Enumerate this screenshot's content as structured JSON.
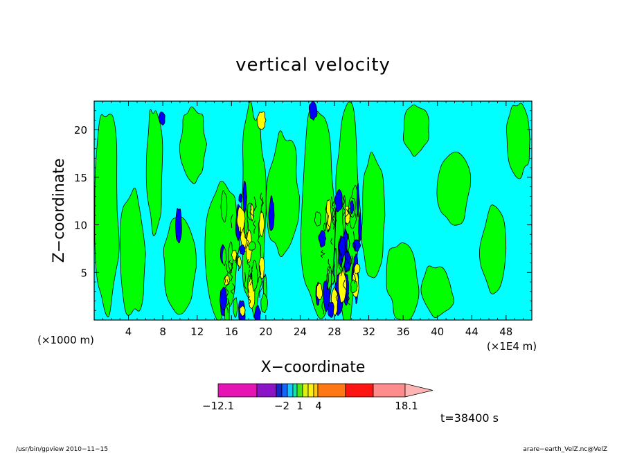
{
  "chart_data": {
    "type": "heatmap",
    "title": "vertical velocity",
    "xlabel": "X−coordinate",
    "ylabel": "Z−coordinate",
    "x_unit_left": "(×1000 m)",
    "x_unit_right": "(×1E4 m)",
    "xlim": [
      0,
      51
    ],
    "ylim": [
      0,
      23
    ],
    "xticks": [
      "4",
      "8",
      "12",
      "16",
      "20",
      "24",
      "28",
      "32",
      "36",
      "40",
      "44",
      "48"
    ],
    "xtick_values": [
      4,
      8,
      12,
      16,
      20,
      24,
      28,
      32,
      36,
      40,
      44,
      48
    ],
    "yticks": [
      "5",
      "10",
      "15",
      "20"
    ],
    "ytick_values": [
      5,
      10,
      15,
      20
    ],
    "time_label": "t=38400 s",
    "colorbar": {
      "labels": [
        {
          "text": "−12.1",
          "value": -12.1
        },
        {
          "text": "−2",
          "value": -2
        },
        {
          "text": "1",
          "value": 1
        },
        {
          "text": "4",
          "value": 4
        },
        {
          "text": "18.1",
          "value": 18.1
        }
      ],
      "colors": [
        "#e614b4",
        "#8c14c8",
        "#1428c8",
        "#1464ff",
        "#14c8ff",
        "#14e6a0",
        "#50e614",
        "#dcf014",
        "#fff014",
        "#ffc814",
        "#ff7814",
        "#ff1414",
        "#ff8c8c",
        "#ffb4b4"
      ]
    },
    "field_colors": {
      "background": "#00ffff",
      "positive_weak": "#00ff00",
      "positive_mid": "#ffff00",
      "positive_strong": "#ff7f00",
      "negative": "#0000ff",
      "negative_deep": "#00007f"
    },
    "regions": [
      {
        "kind": "green",
        "x": [
          0,
          3
        ],
        "z": [
          0,
          23
        ]
      },
      {
        "kind": "green",
        "x": [
          3,
          6
        ],
        "z": [
          0,
          14
        ]
      },
      {
        "kind": "green",
        "x": [
          6,
          8
        ],
        "z": [
          9,
          23
        ]
      },
      {
        "kind": "green",
        "x": [
          8,
          12
        ],
        "z": [
          0,
          11
        ]
      },
      {
        "kind": "green",
        "x": [
          10,
          13
        ],
        "z": [
          14,
          23
        ]
      },
      {
        "kind": "green",
        "x": [
          13,
          17
        ],
        "z": [
          0,
          16
        ]
      },
      {
        "kind": "green",
        "x": [
          17,
          20
        ],
        "z": [
          0,
          23
        ]
      },
      {
        "kind": "green",
        "x": [
          20,
          24
        ],
        "z": [
          6,
          20
        ]
      },
      {
        "kind": "green",
        "x": [
          24,
          28
        ],
        "z": [
          0,
          23
        ]
      },
      {
        "kind": "green",
        "x": [
          28,
          31
        ],
        "z": [
          0,
          23
        ]
      },
      {
        "kind": "green",
        "x": [
          31,
          34
        ],
        "z": [
          4,
          18
        ]
      },
      {
        "kind": "green",
        "x": [
          34,
          38
        ],
        "z": [
          0,
          9
        ]
      },
      {
        "kind": "green",
        "x": [
          36,
          39
        ],
        "z": [
          17,
          23
        ]
      },
      {
        "kind": "green",
        "x": [
          38,
          42
        ],
        "z": [
          0,
          6
        ]
      },
      {
        "kind": "green",
        "x": [
          40,
          44
        ],
        "z": [
          10,
          18
        ]
      },
      {
        "kind": "green",
        "x": [
          45,
          48
        ],
        "z": [
          3,
          12
        ]
      },
      {
        "kind": "green",
        "x": [
          48,
          51
        ],
        "z": [
          15,
          23
        ]
      },
      {
        "kind": "yellow",
        "x": [
          17,
          18
        ],
        "z": [
          7,
          11
        ]
      },
      {
        "kind": "yellow",
        "x": [
          29,
          30
        ],
        "z": [
          10,
          12
        ]
      },
      {
        "kind": "yellow",
        "x": [
          29,
          30
        ],
        "z": [
          5,
          7
        ]
      },
      {
        "kind": "yellow",
        "x": [
          19,
          20
        ],
        "z": [
          20,
          22
        ]
      },
      {
        "kind": "blue",
        "x": [
          7.5,
          8.3
        ],
        "z": [
          20.5,
          22
        ]
      },
      {
        "kind": "blue",
        "x": [
          9.5,
          10.2
        ],
        "z": [
          8,
          12
        ]
      },
      {
        "kind": "blue",
        "x": [
          20.3,
          21
        ],
        "z": [
          9,
          13
        ]
      },
      {
        "kind": "blue",
        "x": [
          25,
          26
        ],
        "z": [
          21,
          23
        ]
      },
      {
        "kind": "blue",
        "x": [
          28,
          29
        ],
        "z": [
          0.5,
          5
        ]
      },
      {
        "kind": "blue",
        "x": [
          30,
          30.8
        ],
        "z": [
          3,
          6
        ]
      }
    ],
    "dense_zones": [
      {
        "x": [
          15,
          20
        ],
        "z": [
          0.5,
          13
        ]
      },
      {
        "x": [
          26,
          31
        ],
        "z": [
          0.5,
          13
        ]
      }
    ]
  },
  "footer": {
    "left": "/usr/bin/gpview   2010−11−15",
    "right": "arare−earth_VelZ.nc@VelZ"
  }
}
